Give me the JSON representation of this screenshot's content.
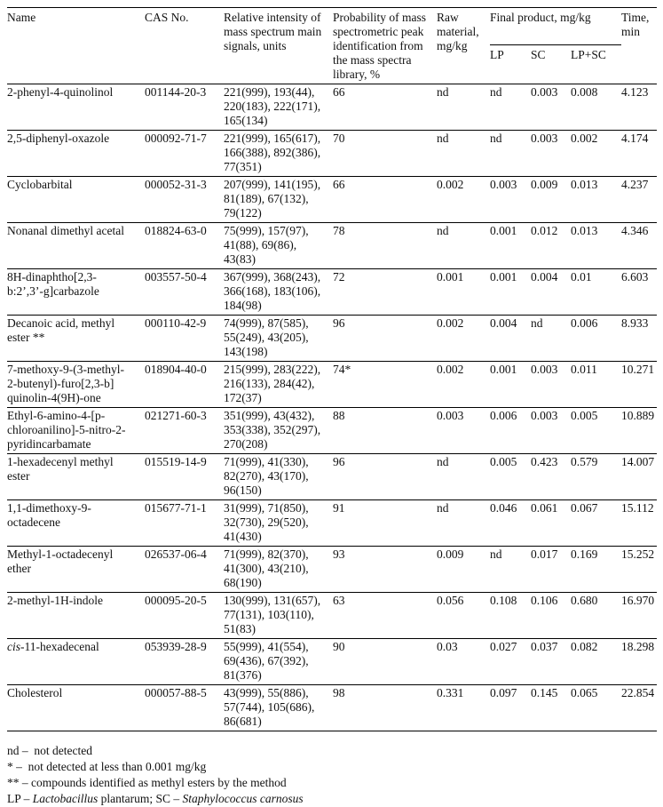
{
  "table": {
    "headers": {
      "name": "Name",
      "cas": "CAS No.",
      "intensity": "Relative intensity of\nmass spectrum main\nsignals, units",
      "probability": "Probability of mass\nspectrometric peak\nidentification from\nthe mass spectra\nlibrary, %",
      "raw_material": "Raw\nmaterial,\nmg/kg",
      "final_product": "Final product, mg/kg",
      "lp": "LP",
      "sc": "SC",
      "lp_sc": "LP+SC",
      "time": "Time,\nmin"
    },
    "rows": [
      {
        "name": "2-phenyl-4-quinolinol",
        "cas": "001144-20-3",
        "intensity": "221(999), 193(44),\n220(183), 222(171),\n165(134)",
        "probability": "66",
        "raw_material": "nd",
        "lp": "nd",
        "sc": "0.003",
        "lp_sc": "0.008",
        "time": "4.123"
      },
      {
        "name": "2,5-diphenyl-oxazole",
        "cas": "000092-71-7",
        "intensity": "221(999), 165(617),\n166(388), 892(386),\n77(351)",
        "probability": "70",
        "raw_material": "nd",
        "lp": "nd",
        "sc": "0.003",
        "lp_sc": "0.002",
        "time": "4.174"
      },
      {
        "name": "Cyclobarbital",
        "cas": "000052-31-3",
        "intensity": "207(999), 141(195),\n81(189), 67(132),\n79(122)",
        "probability": "66",
        "raw_material": "0.002",
        "lp": "0.003",
        "sc": "0.009",
        "lp_sc": "0.013",
        "time": "4.237"
      },
      {
        "name": "Nonanal dimethyl acetal",
        "cas": "018824-63-0",
        "intensity": "75(999), 157(97),\n41(88), 69(86),\n43(83)",
        "probability": "78",
        "raw_material": "nd",
        "lp": "0.001",
        "sc": "0.012",
        "lp_sc": "0.013",
        "time": "4.346"
      },
      {
        "name": "8H-dinaphtho[2,3-\nb:2’,3’-g]carbazole",
        "cas": "003557-50-4",
        "intensity": "367(999), 368(243),\n366(168), 183(106),\n184(98)",
        "probability": "72",
        "raw_material": "0.001",
        "lp": "0.001",
        "sc": "0.004",
        "lp_sc": "0.01",
        "time": "6.603"
      },
      {
        "name": "Decanoic acid, methyl\nester **",
        "cas": "000110-42-9",
        "intensity": "74(999), 87(585),\n55(249), 43(205),\n143(198)",
        "probability": "96",
        "raw_material": "0.002",
        "lp": "0.004",
        "sc": "nd",
        "lp_sc": "0.006",
        "time": "8.933"
      },
      {
        "name": "7-methoxy-9-(3-methyl-\n2-butenyl)-furo[2,3-b]\nquinolin-4(9H)-one",
        "cas": "018904-40-0",
        "intensity": "215(999), 283(222),\n216(133), 284(42),\n172(37)",
        "probability": "74*",
        "raw_material": "0.002",
        "lp": "0.001",
        "sc": "0.003",
        "lp_sc": "0.011",
        "time": "10.271"
      },
      {
        "name": "Ethyl-6-amino-4-[p-\nchloroanilino]-5-nitro-2-\npyridincarbamate",
        "cas": "021271-60-3",
        "intensity": "351(999), 43(432),\n353(338), 352(297),\n270(208)",
        "probability": "88",
        "raw_material": "0.003",
        "lp": "0.006",
        "sc": "0.003",
        "lp_sc": "0.005",
        "time": "10.889"
      },
      {
        "name": "1-hexadecenyl methyl\nester",
        "cas": "015519-14-9",
        "intensity": "71(999), 41(330),\n82(270), 43(170),\n96(150)",
        "probability": "96",
        "raw_material": "nd",
        "lp": "0.005",
        "sc": "0.423",
        "lp_sc": "0.579",
        "time": "14.007"
      },
      {
        "name": "1,1-dimethoxy-9-\noctadecene",
        "cas": "015677-71-1",
        "intensity": "31(999), 71(850),\n32(730), 29(520),\n41(430)",
        "probability": "91",
        "raw_material": "nd",
        "lp": "0.046",
        "sc": "0.061",
        "lp_sc": "0.067",
        "time": "15.112"
      },
      {
        "name": "Methyl-1-octadecenyl\nether",
        "cas": "026537-06-4",
        "intensity": "71(999), 82(370),\n41(300), 43(210),\n68(190)",
        "probability": "93",
        "raw_material": "0.009",
        "lp": "nd",
        "sc": "0.017",
        "lp_sc": "0.169",
        "time": "15.252"
      },
      {
        "name": "2-methyl-1H-indole",
        "cas": "000095-20-5",
        "intensity": "130(999), 131(657),\n77(131), 103(110),\n51(83)",
        "probability": "63",
        "raw_material": "0.056",
        "lp": "0.108",
        "sc": "0.106",
        "lp_sc": "0.680",
        "time": "16.970"
      },
      {
        "name": [
          {
            "t": "cis",
            "i": true
          },
          {
            "t": "-11-hexadecenal"
          }
        ],
        "cas": "053939-28-9",
        "intensity": "55(999), 41(554),\n69(436), 67(392),\n81(376)",
        "probability": "90",
        "raw_material": "0.03",
        "lp": "0.027",
        "sc": "0.037",
        "lp_sc": "0.082",
        "time": "18.298"
      },
      {
        "name": "Cholesterol",
        "cas": "000057-88-5",
        "intensity": "43(999), 55(886),\n57(744), 105(686),\n86(681)",
        "probability": "98",
        "raw_material": "0.331",
        "lp": "0.097",
        "sc": "0.145",
        "lp_sc": "0.065",
        "time": "22.854"
      }
    ]
  },
  "footnotes": [
    [
      {
        "t": "nd –  not detected"
      }
    ],
    [
      {
        "t": "* –  not detected at less than 0.001 mg/kg"
      }
    ],
    [
      {
        "t": "** – compounds identified as methyl esters by the method"
      }
    ],
    [
      {
        "t": "LP – "
      },
      {
        "t": "Lactobacillus",
        "i": true
      },
      {
        "t": " plantarum; SC – "
      },
      {
        "t": "Staphylococcus carnosus",
        "i": true
      }
    ]
  ]
}
